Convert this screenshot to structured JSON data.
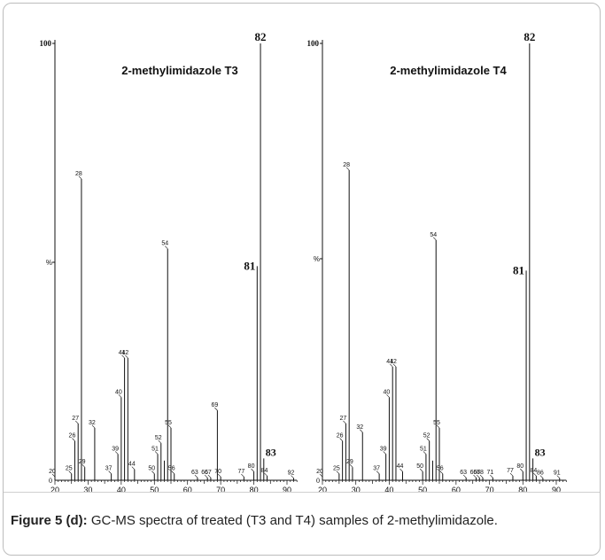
{
  "figure": {
    "caption": {
      "label": "Figure 5 (d):",
      "text": " GC-MS spectra of treated (T3 and T4) samples of 2-methylimidazole."
    }
  },
  "chart_data": [
    {
      "type": "bar",
      "title": "2-methylimidazole T3",
      "ylabel": "%",
      "y_top_label": "100",
      "xlim": [
        20,
        93
      ],
      "ylim": [
        0,
        100
      ],
      "x_ticks": [
        "20",
        "30",
        "40",
        "50",
        "60",
        "70",
        "80",
        "90"
      ],
      "peaks": [
        {
          "mz": 20,
          "intensity": 0.8,
          "label": "20"
        },
        {
          "mz": 25,
          "intensity": 1.5,
          "label": "25"
        },
        {
          "mz": 26,
          "intensity": 9,
          "label": "26"
        },
        {
          "mz": 27,
          "intensity": 13,
          "label": "27"
        },
        {
          "mz": 28,
          "intensity": 69,
          "label": "28"
        },
        {
          "mz": 29,
          "intensity": 3,
          "label": "29"
        },
        {
          "mz": 32,
          "intensity": 12,
          "label": "32"
        },
        {
          "mz": 37,
          "intensity": 1.5,
          "label": "37"
        },
        {
          "mz": 39,
          "intensity": 6,
          "label": "39"
        },
        {
          "mz": 40,
          "intensity": 19,
          "label": "40"
        },
        {
          "mz": 41,
          "intensity": 28,
          "label": "41"
        },
        {
          "mz": 42,
          "intensity": 28,
          "label": "42"
        },
        {
          "mz": 44,
          "intensity": 2.5,
          "label": "44"
        },
        {
          "mz": 50,
          "intensity": 1.5,
          "label": "50"
        },
        {
          "mz": 51,
          "intensity": 6,
          "label": "51"
        },
        {
          "mz": 52,
          "intensity": 8.5,
          "label": "52"
        },
        {
          "mz": 53,
          "intensity": 4.5,
          "label": ""
        },
        {
          "mz": 54,
          "intensity": 53,
          "label": "54"
        },
        {
          "mz": 55,
          "intensity": 12,
          "label": "55"
        },
        {
          "mz": 56,
          "intensity": 1.5,
          "label": "56"
        },
        {
          "mz": 63,
          "intensity": 0.6,
          "label": "63"
        },
        {
          "mz": 66,
          "intensity": 0.6,
          "label": "66"
        },
        {
          "mz": 67,
          "intensity": 0.6,
          "label": "67"
        },
        {
          "mz": 69,
          "intensity": 16,
          "label": "69"
        },
        {
          "mz": 70,
          "intensity": 0.8,
          "label": "70"
        },
        {
          "mz": 77,
          "intensity": 0.8,
          "label": "77"
        },
        {
          "mz": 80,
          "intensity": 2,
          "label": "80"
        },
        {
          "mz": 81,
          "intensity": 49,
          "label": "81"
        },
        {
          "mz": 82,
          "intensity": 100,
          "label": "82"
        },
        {
          "mz": 83,
          "intensity": 5,
          "label": "83"
        },
        {
          "mz": 84,
          "intensity": 1,
          "label": "84"
        },
        {
          "mz": 92,
          "intensity": 0.5,
          "label": "92"
        }
      ]
    },
    {
      "type": "bar",
      "title": "2-methylimidazole T4",
      "ylabel": "%",
      "y_top_label": "100",
      "xlim": [
        20,
        93
      ],
      "ylim": [
        0,
        100
      ],
      "x_ticks": [
        "20",
        "30",
        "40",
        "50",
        "60",
        "70",
        "80",
        "90"
      ],
      "peaks": [
        {
          "mz": 20,
          "intensity": 0.8,
          "label": "20"
        },
        {
          "mz": 25,
          "intensity": 1.5,
          "label": "25"
        },
        {
          "mz": 26,
          "intensity": 9,
          "label": "26"
        },
        {
          "mz": 27,
          "intensity": 13,
          "label": "27"
        },
        {
          "mz": 28,
          "intensity": 71,
          "label": "28"
        },
        {
          "mz": 29,
          "intensity": 3,
          "label": "29"
        },
        {
          "mz": 32,
          "intensity": 11,
          "label": "32"
        },
        {
          "mz": 37,
          "intensity": 1.5,
          "label": "37"
        },
        {
          "mz": 39,
          "intensity": 6,
          "label": "39"
        },
        {
          "mz": 40,
          "intensity": 19,
          "label": "40"
        },
        {
          "mz": 41,
          "intensity": 26,
          "label": "41"
        },
        {
          "mz": 42,
          "intensity": 26,
          "label": "42"
        },
        {
          "mz": 44,
          "intensity": 2,
          "label": "44"
        },
        {
          "mz": 50,
          "intensity": 2,
          "label": "50"
        },
        {
          "mz": 51,
          "intensity": 6,
          "label": "51"
        },
        {
          "mz": 52,
          "intensity": 9,
          "label": "52"
        },
        {
          "mz": 53,
          "intensity": 4.5,
          "label": ""
        },
        {
          "mz": 54,
          "intensity": 55,
          "label": "54"
        },
        {
          "mz": 55,
          "intensity": 12,
          "label": "55"
        },
        {
          "mz": 56,
          "intensity": 1.5,
          "label": "56"
        },
        {
          "mz": 63,
          "intensity": 0.6,
          "label": "63"
        },
        {
          "mz": 66,
          "intensity": 0.6,
          "label": "66"
        },
        {
          "mz": 67,
          "intensity": 0.6,
          "label": "67"
        },
        {
          "mz": 68,
          "intensity": 0.6,
          "label": "68"
        },
        {
          "mz": 71,
          "intensity": 0.6,
          "label": "71"
        },
        {
          "mz": 77,
          "intensity": 1,
          "label": "77"
        },
        {
          "mz": 80,
          "intensity": 2,
          "label": "80"
        },
        {
          "mz": 81,
          "intensity": 48,
          "label": "81"
        },
        {
          "mz": 82,
          "intensity": 100,
          "label": "82"
        },
        {
          "mz": 83,
          "intensity": 5,
          "label": "83"
        },
        {
          "mz": 84,
          "intensity": 1,
          "label": "84"
        },
        {
          "mz": 86,
          "intensity": 0.5,
          "label": "86"
        },
        {
          "mz": 91,
          "intensity": 0.5,
          "label": "91"
        }
      ]
    }
  ]
}
